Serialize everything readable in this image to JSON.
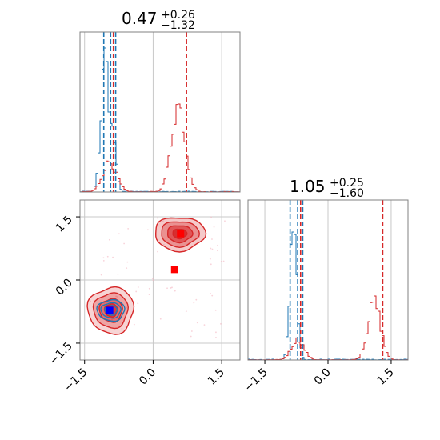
{
  "colors": {
    "blue": "#1f77b4",
    "red": "#d62728",
    "marker_red": "#ff0000",
    "marker_blue": "#0000ff",
    "grid": "#c8c8c8",
    "axis": "#808080"
  },
  "chart_data": {
    "type": "corner",
    "grid": true,
    "parameters": [
      {
        "title_main": "0.47",
        "title_sup": "+0.26",
        "title_sub": "−1.32",
        "range": [
          -1.6,
          1.9
        ],
        "ticks": [
          -1.5,
          0.0,
          1.5
        ],
        "tick_labels": [
          "−1.5",
          "0.0",
          "1.5"
        ]
      },
      {
        "title_main": "1.05",
        "title_sup": "+0.25",
        "title_sub": "−1.60",
        "range": [
          -1.9,
          1.9
        ],
        "ticks": [
          -1.5,
          0.0,
          1.5
        ],
        "tick_labels": [
          "−1.5",
          "0.0",
          "1.5"
        ]
      }
    ],
    "series": [
      {
        "color_key": "blue",
        "hist": [
          {
            "mode": -1.05,
            "width": 0.09,
            "weight": 1.0
          },
          {
            "mode": -0.85,
            "width": 0.06,
            "weight": 0.35
          }
        ],
        "quantiles_x": [
          -1.08,
          -0.93,
          -0.82
        ],
        "hist_y": [
          {
            "mode": -0.82,
            "width": 0.08,
            "weight": 1.0
          }
        ],
        "quantiles_y": [
          -0.9,
          -0.72,
          -0.6
        ],
        "blob": {
          "cx": -0.92,
          "cy": -0.72,
          "rx": 0.3,
          "ry": 0.25
        }
      },
      {
        "color_key": "red",
        "hist": [
          {
            "mode": -0.95,
            "width": 0.15,
            "weight": 0.35
          },
          {
            "mode": 0.55,
            "width": 0.15,
            "weight": 1.0
          }
        ],
        "quantiles_x": [
          -0.87,
          0.73
        ],
        "hist_y": [
          {
            "mode": -0.72,
            "width": 0.15,
            "weight": 0.35
          },
          {
            "mode": 1.1,
            "width": 0.15,
            "weight": 1.0
          }
        ],
        "quantiles_y": [
          -0.65,
          1.3
        ],
        "blob": {
          "cx": 0.58,
          "cy": 1.1,
          "rx": 0.55,
          "ry": 0.4
        },
        "blob2": {
          "cx": -0.92,
          "cy": -0.72,
          "rx": 0.5,
          "ry": 0.55
        }
      }
    ],
    "markers": [
      {
        "x": -0.95,
        "y": -0.7,
        "color_key": "marker_red"
      },
      {
        "x": 0.6,
        "y": 1.1,
        "color_key": "marker_red"
      },
      {
        "x": 0.47,
        "y": 0.25,
        "color_key": "marker_red"
      },
      {
        "x": -0.95,
        "y": -0.72,
        "color_key": "marker_blue"
      }
    ]
  }
}
